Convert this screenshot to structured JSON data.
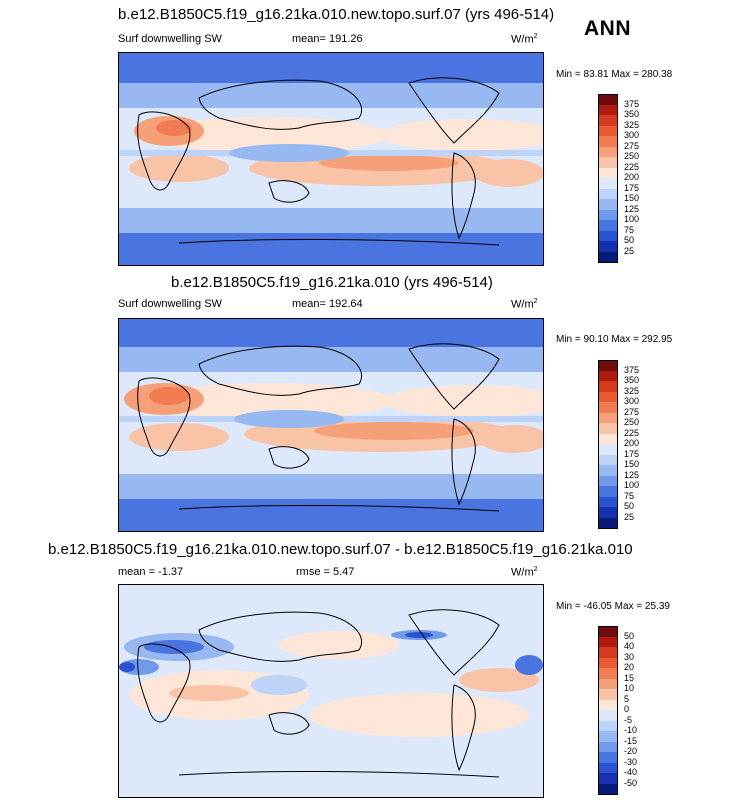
{
  "season": "ANN",
  "panels": [
    {
      "title": "b.e12.B1850C5.f19_g16.21ka.010.new.topo.surf.07 (yrs 496-514)",
      "variable": "Surf downwelling SW",
      "mean": "mean= 191.26",
      "rmse": "",
      "units": "W/m",
      "units_sup": "2",
      "minmax": "Min =  83.81 Max = 280.38",
      "colorbar_labels": [
        "375",
        "350",
        "325",
        "300",
        "275",
        "250",
        "225",
        "200",
        "175",
        "150",
        "125",
        "100",
        "75",
        "50",
        "25"
      ]
    },
    {
      "title": "b.e12.B1850C5.f19_g16.21ka.010 (yrs 496-514)",
      "variable": "Surf downwelling SW",
      "mean": "mean= 192.64",
      "rmse": "",
      "units": "W/m",
      "units_sup": "2",
      "minmax": "Min =  90.10 Max = 292.95",
      "colorbar_labels": [
        "375",
        "350",
        "325",
        "300",
        "275",
        "250",
        "225",
        "200",
        "175",
        "150",
        "125",
        "100",
        "75",
        "50",
        "25"
      ]
    },
    {
      "title": "b.e12.B1850C5.f19_g16.21ka.010.new.topo.surf.07 - b.e12.B1850C5.f19_g16.21ka.010",
      "variable": "",
      "mean": "mean =  -1.37",
      "rmse": "rmse =   5.47",
      "units": "W/m",
      "units_sup": "2",
      "minmax": "Min = -46.05 Max =  25.39",
      "colorbar_labels": [
        "50",
        "40",
        "30",
        "20",
        "15",
        "10",
        "5",
        "0",
        "-5",
        "-10",
        "-15",
        "-20",
        "-30",
        "-40",
        "-50"
      ]
    }
  ],
  "colorbar_colors": [
    "#6e0c0c",
    "#b01a0f",
    "#d63a1c",
    "#ea5a33",
    "#f27c52",
    "#f6a07a",
    "#f9c3a8",
    "#fde6d8",
    "#dde9fb",
    "#bdd3f7",
    "#97b8f1",
    "#7199ea",
    "#4a74e0",
    "#2a52d1",
    "#1530b0",
    "#0a1a7a"
  ],
  "colors": {
    "text": "#000000",
    "background": "#ffffff"
  }
}
